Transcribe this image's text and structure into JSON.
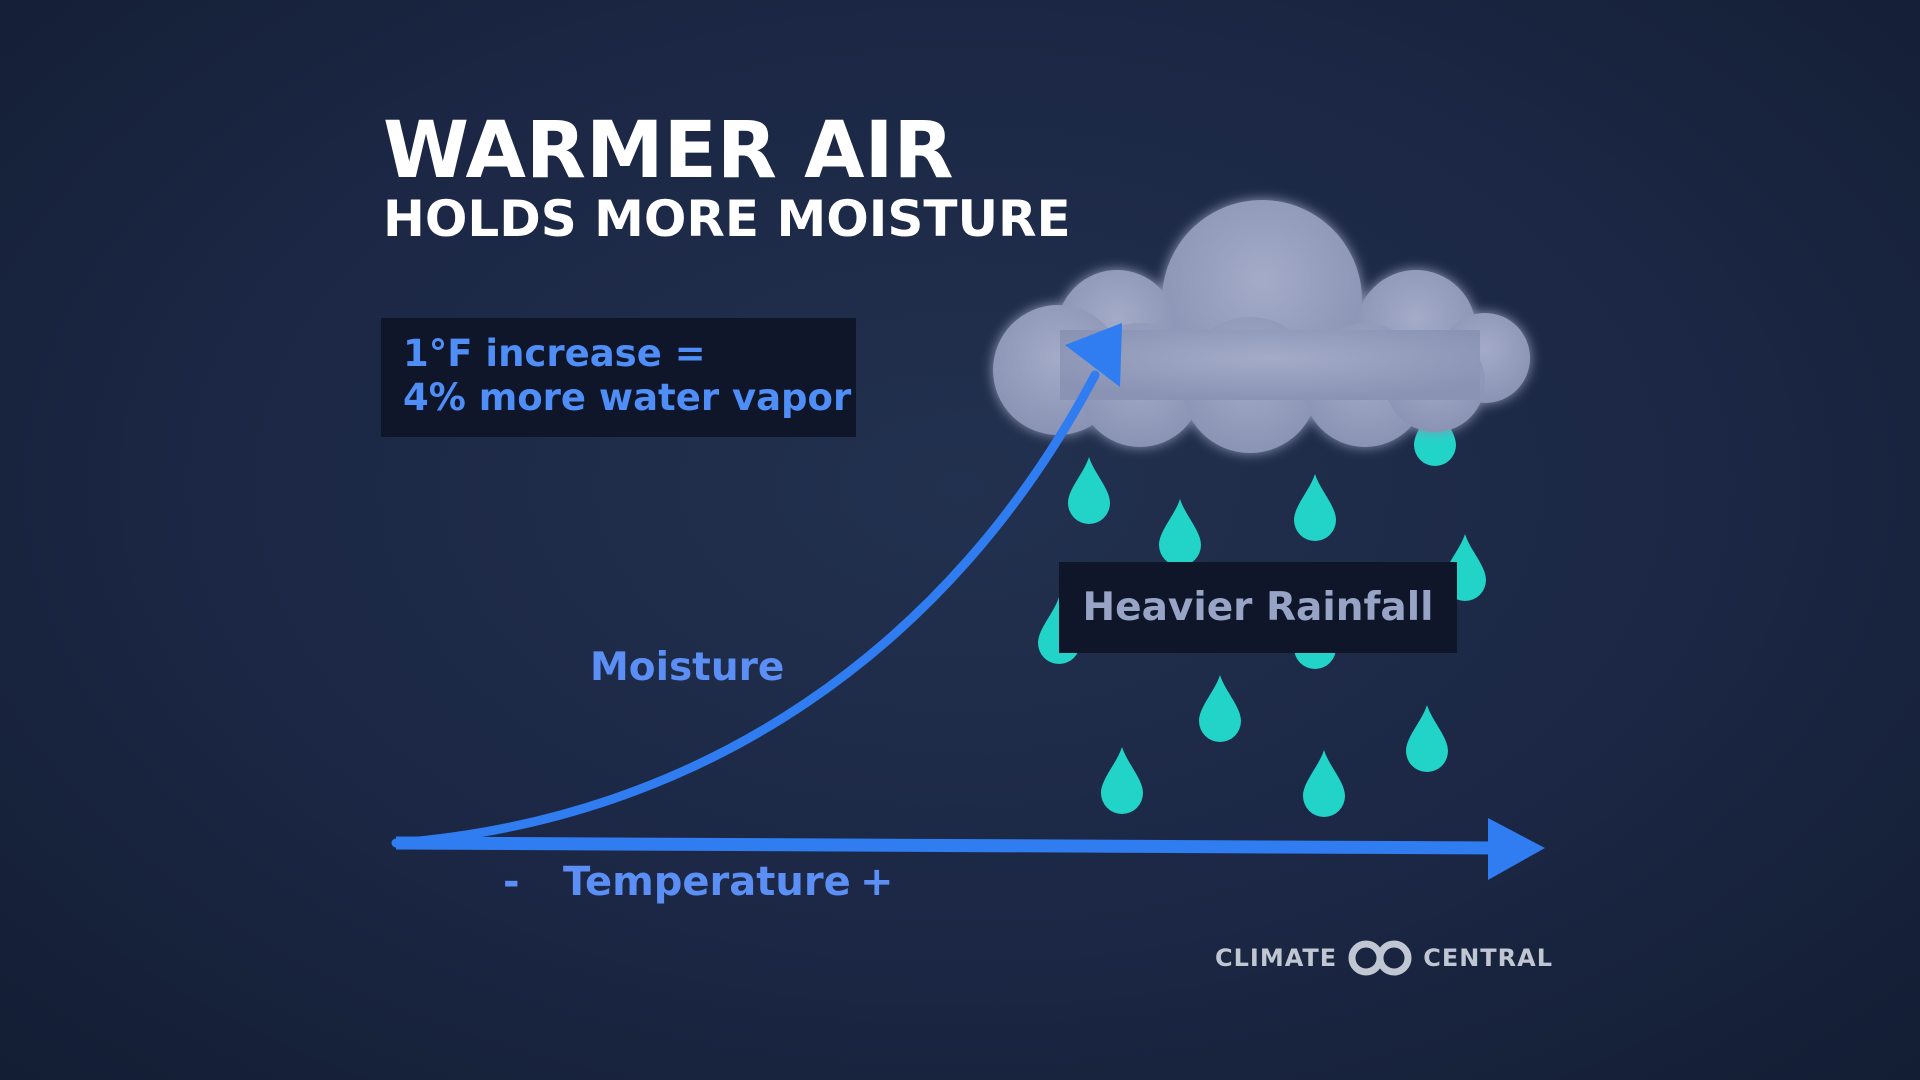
{
  "title": "WARMER AIR",
  "subtitle": "HOLDS MORE MOISTURE",
  "fact_box": {
    "line1": "1°F increase =",
    "line2": "4% more water vapor"
  },
  "labels": {
    "moisture": "Moisture",
    "temperature": "Temperature",
    "minus": "-",
    "plus": "+",
    "heavier_rainfall": "Heavier Rainfall"
  },
  "brand": {
    "left": "CLIMATE",
    "right": "CENTRAL",
    "logo_icon": "interlocking-rings-icon"
  },
  "colors": {
    "background": "#1b2744",
    "arrow": "#2f7df0",
    "raindrop": "#22d4c8",
    "cloud": "#9aa2c0",
    "box": "#0f1629",
    "label_blue": "#5b8ff5"
  }
}
